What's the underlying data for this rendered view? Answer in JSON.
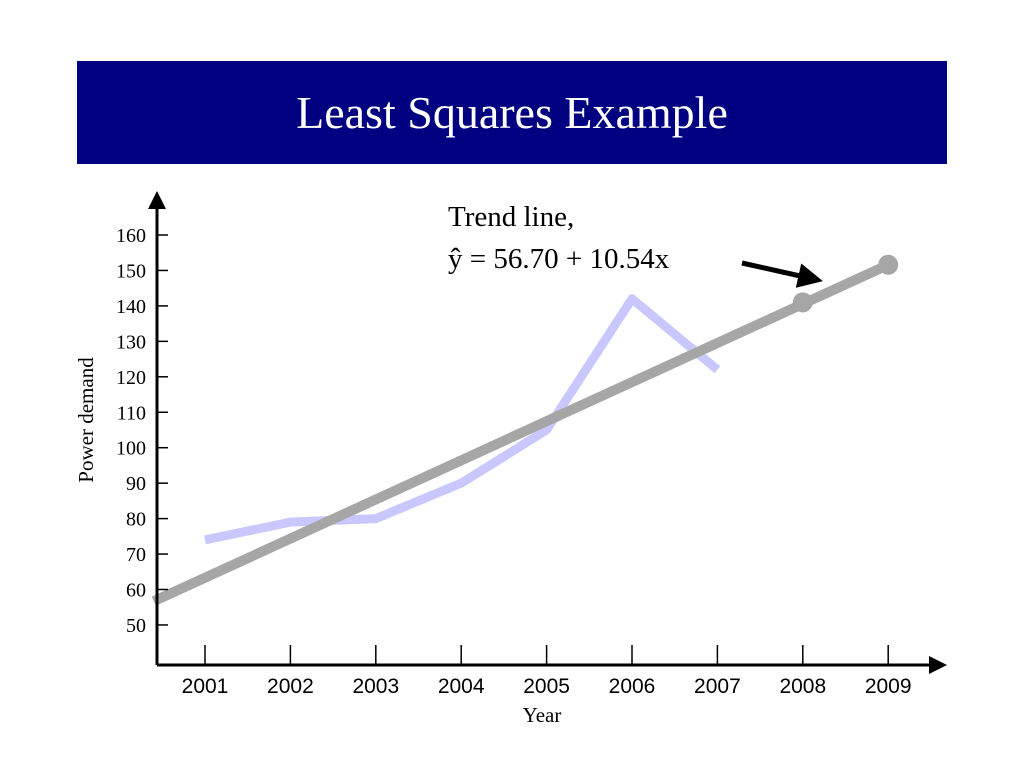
{
  "slide": {
    "title": "Least Squares Example"
  },
  "colors": {
    "title_bar": "#000080",
    "actual_series": "#c8c8ff",
    "trend_series": "#a6a6a6",
    "axis": "#000000"
  },
  "chart_data": {
    "type": "line",
    "title": "",
    "xlabel": "Year",
    "ylabel": "Power demand",
    "x": [
      2001,
      2002,
      2003,
      2004,
      2005,
      2006,
      2007,
      2008,
      2009
    ],
    "ylim": [
      40,
      166
    ],
    "yticks": [
      50,
      60,
      70,
      80,
      90,
      100,
      110,
      120,
      130,
      140,
      150,
      160
    ],
    "series": [
      {
        "name": "Power demand",
        "x": [
          2001,
          2002,
          2003,
          2004,
          2005,
          2006,
          2007
        ],
        "values": [
          74,
          79,
          80,
          90,
          105,
          142,
          122
        ]
      },
      {
        "name": "Trend line",
        "x": [
          2000.4,
          2009
        ],
        "values": [
          56.7,
          151.6
        ],
        "markers": [
          {
            "x": 2008,
            "value": 141.0
          },
          {
            "x": 2009,
            "value": 151.6
          }
        ]
      }
    ],
    "annotation": {
      "line1": "Trend line,",
      "equation": "ŷ = 56.70 + 10.54x"
    }
  }
}
